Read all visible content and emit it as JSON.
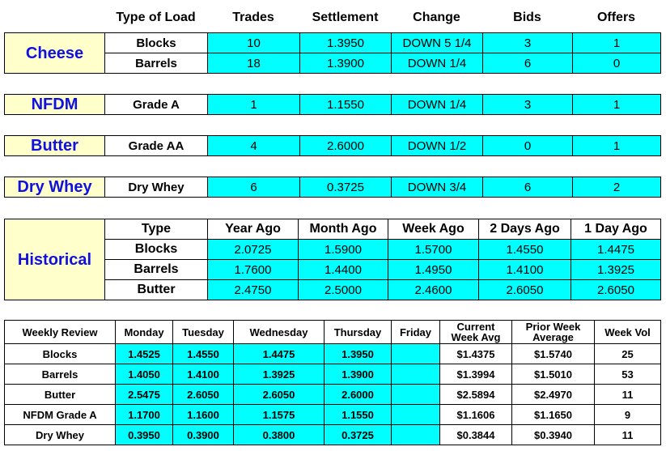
{
  "header": {
    "columns": [
      "Type of Load",
      "Trades",
      "Settlement",
      "Change",
      "Bids",
      "Offers"
    ]
  },
  "groups": [
    {
      "name": "Cheese",
      "rows": [
        [
          "Blocks",
          "10",
          "1.3950",
          "DOWN 5 1/4",
          "3",
          "1"
        ],
        [
          "Barrels",
          "18",
          "1.3900",
          "DOWN 1/4",
          "6",
          "0"
        ]
      ]
    },
    {
      "name": "NFDM",
      "rows": [
        [
          "Grade A",
          "1",
          "1.1550",
          "DOWN 1/4",
          "3",
          "1"
        ]
      ]
    },
    {
      "name": "Butter",
      "rows": [
        [
          "Grade AA",
          "4",
          "2.6000",
          "DOWN 1/2",
          "0",
          "1"
        ]
      ]
    },
    {
      "name": "Dry Whey",
      "rows": [
        [
          "Dry Whey",
          "6",
          "0.3725",
          "DOWN 3/4",
          "6",
          "2"
        ]
      ]
    }
  ],
  "historical": {
    "title": "Historical",
    "columns": [
      "Type",
      "Year Ago",
      "Month Ago",
      "Week Ago",
      "2 Days Ago",
      "1 Day Ago"
    ],
    "rows": [
      [
        "Blocks",
        "2.0725",
        "1.5900",
        "1.5700",
        "1.4550",
        "1.4475"
      ],
      [
        "Barrels",
        "1.7600",
        "1.4400",
        "1.4950",
        "1.4100",
        "1.3925"
      ],
      [
        "Butter",
        "2.4750",
        "2.5000",
        "2.4600",
        "2.6050",
        "2.6050"
      ]
    ]
  },
  "weekly": {
    "columns": [
      "Weekly Review",
      "Monday",
      "Tuesday",
      "Wednesday",
      "Thursday",
      "Friday",
      "Current\nWeek Avg",
      "Prior Week\nAverage",
      "Week Vol"
    ],
    "rows": [
      [
        "Blocks",
        "1.4525",
        "1.4550",
        "1.4475",
        "1.3950",
        "",
        "$1.4375",
        "$1.5740",
        "25"
      ],
      [
        "Barrels",
        "1.4050",
        "1.4100",
        "1.3925",
        "1.3900",
        "",
        "$1.3994",
        "$1.5010",
        "53"
      ],
      [
        "Butter",
        "2.5475",
        "2.6050",
        "2.6050",
        "2.6000",
        "",
        "$2.5894",
        "$2.4970",
        "11"
      ],
      [
        "NFDM Grade A",
        "1.1700",
        "1.1600",
        "1.1575",
        "1.1550",
        "",
        "$1.1606",
        "$1.1650",
        "9"
      ],
      [
        "Dry Whey",
        "0.3950",
        "0.3900",
        "0.3800",
        "0.3725",
        "",
        "$0.3844",
        "$0.3940",
        "11"
      ]
    ]
  }
}
